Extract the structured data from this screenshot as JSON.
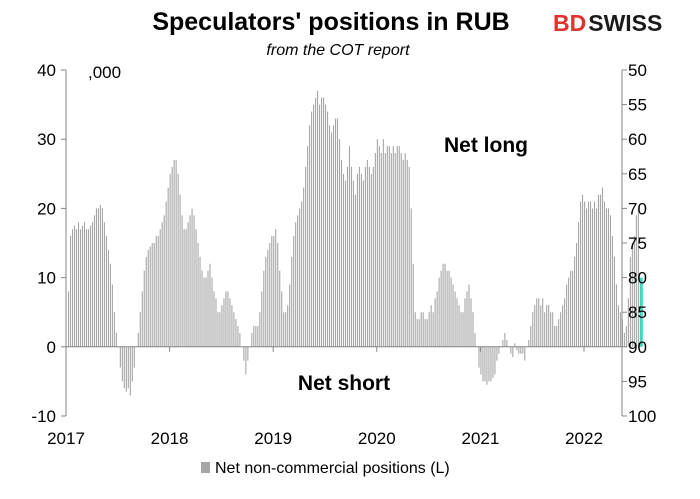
{
  "chart_data": {
    "type": "bar",
    "title": "Speculators' positions in RUB",
    "subtitle": "from the COT report",
    "y_unit_label": ",000",
    "ylim_left": [
      -10,
      40
    ],
    "yticks_left": [
      "-10",
      "0",
      "10",
      "20",
      "30",
      "40"
    ],
    "ylim_right": [
      100,
      50
    ],
    "yticks_right": [
      "50",
      "55",
      "60",
      "65",
      "70",
      "75",
      "80",
      "85",
      "90",
      "95",
      "100"
    ],
    "x_ticks": [
      "2017",
      "2018",
      "2019",
      "2020",
      "2021",
      "2022"
    ],
    "x_start": "2017-01",
    "annotations": [
      "Net long",
      "Net short"
    ],
    "legend": [
      "Net non-commercial positions (L)"
    ],
    "grid": false,
    "series": [
      {
        "name": "Net non-commercial positions (L)",
        "color": "#a6a6a6",
        "highlight_last_color": "#40d9c0",
        "values": [
          8,
          16,
          17,
          17.5,
          17,
          18,
          17,
          17.5,
          18,
          17,
          17,
          17.5,
          18,
          19,
          20,
          20,
          20.5,
          20,
          18,
          16,
          14,
          12,
          9,
          5,
          2,
          0,
          -3,
          -5,
          -6,
          -6.5,
          -6,
          -7,
          -5,
          -3,
          0,
          2,
          5,
          8,
          11,
          13,
          14,
          14.5,
          15,
          15,
          16,
          16,
          17,
          18,
          19,
          21,
          23,
          25,
          26,
          27,
          27,
          25,
          22,
          19,
          17,
          17,
          18,
          19,
          20,
          19,
          17,
          15,
          13,
          11,
          10,
          10,
          11,
          12,
          10,
          8,
          7,
          5,
          5,
          6,
          7,
          8,
          8,
          7,
          6,
          5,
          4,
          3,
          2,
          0,
          -2,
          -4,
          -2,
          0,
          2,
          3,
          3,
          3,
          5,
          8,
          11,
          13,
          14,
          15,
          16,
          16,
          17,
          15,
          11,
          8,
          5,
          5,
          6,
          9,
          13,
          16,
          18,
          19,
          20,
          21,
          23,
          26,
          29,
          32,
          34,
          35,
          36,
          37,
          35,
          36,
          36,
          35,
          34,
          32,
          31,
          32,
          33,
          33,
          30,
          27,
          25,
          24,
          26,
          29,
          26,
          24,
          22,
          25,
          26,
          25,
          24,
          26,
          27,
          26,
          25,
          26,
          28,
          30,
          29,
          28,
          30,
          28,
          29,
          29,
          28,
          29,
          28,
          29,
          29,
          28,
          27,
          28,
          27,
          26,
          20,
          12,
          5,
          4,
          4,
          5,
          5,
          4,
          4,
          5,
          6,
          5,
          7,
          8,
          10,
          11,
          12,
          12,
          11,
          11,
          10,
          9,
          8,
          7,
          6,
          5,
          5,
          7,
          8,
          9,
          7,
          5,
          2,
          0,
          -3,
          -4,
          -5,
          -5,
          -5.5,
          -5,
          -5,
          -4.5,
          -4,
          -2,
          -1,
          0,
          1,
          2,
          1,
          0,
          -1,
          -1.5,
          0.5,
          -0.5,
          -1,
          -1,
          -1,
          -2,
          0,
          1,
          3,
          5,
          6,
          7,
          7,
          6,
          7,
          5,
          6,
          6,
          5,
          5,
          3,
          3,
          4,
          5,
          6,
          7,
          9,
          10,
          11,
          11,
          13,
          15,
          18,
          21,
          22,
          21,
          20,
          21,
          21,
          20,
          21,
          20,
          22,
          22,
          23,
          21,
          20,
          20,
          19,
          16,
          13,
          9,
          6,
          5,
          4,
          2,
          3,
          7,
          13,
          15,
          16,
          19,
          20,
          10
        ]
      }
    ]
  },
  "logo_text": {
    "part1": "BD",
    "part2": "SWISS"
  }
}
